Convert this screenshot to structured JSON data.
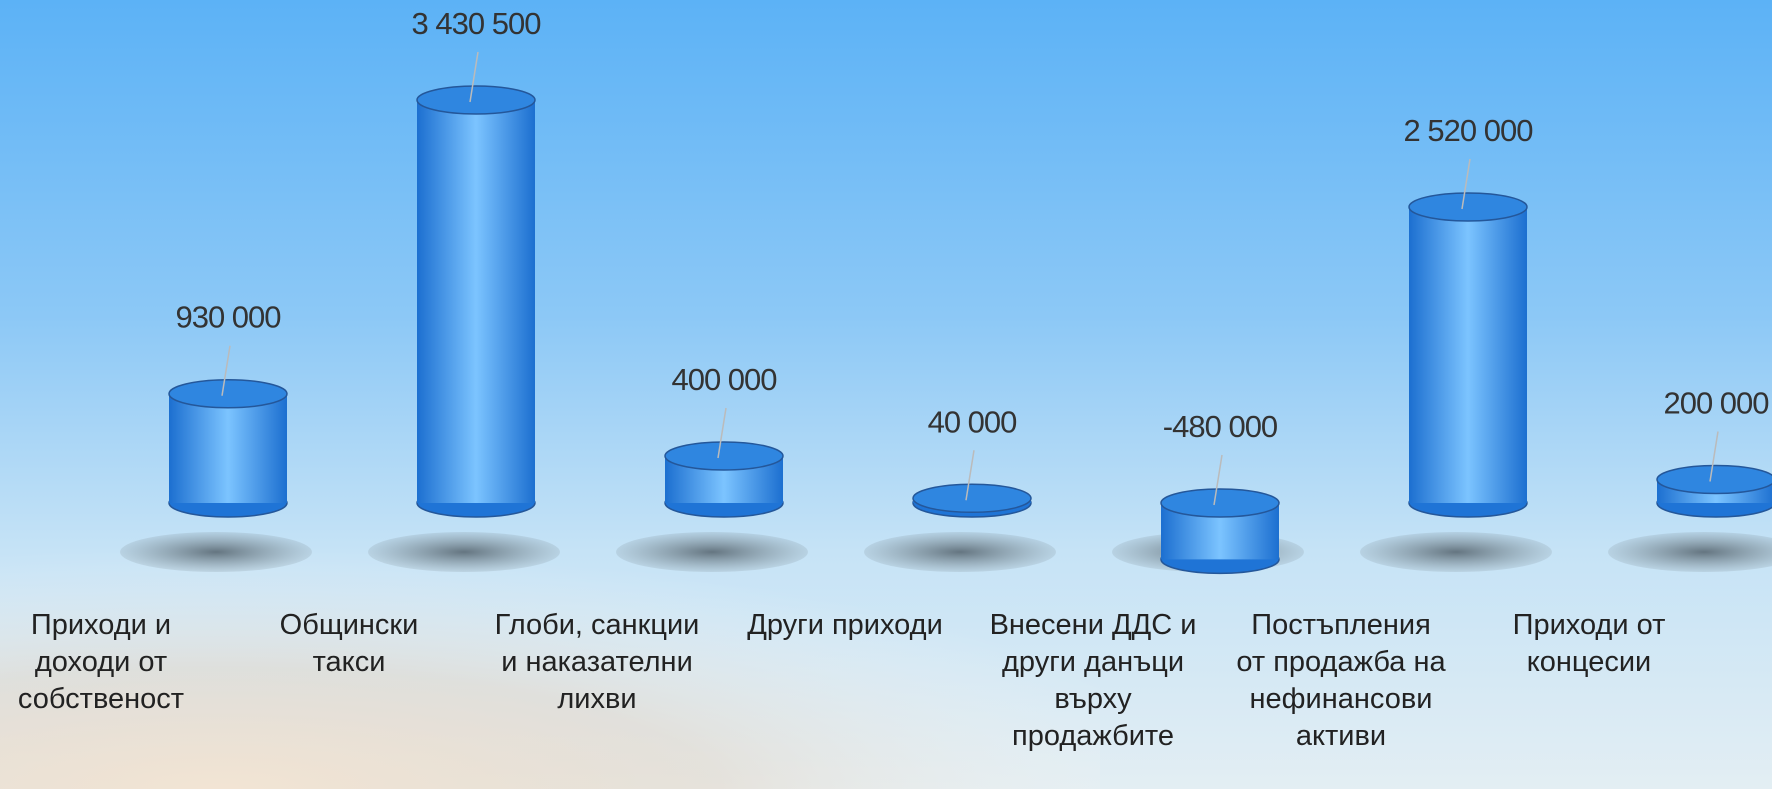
{
  "chart_data": {
    "type": "bar",
    "categories": [
      "Приходи и доходи от собственост",
      "Общински такси",
      "Глоби, санкции и наказателни лихви",
      "Други приходи",
      "Внесени ДДС и други данъци върху продажбите",
      "Постъпления от продажба на нефинансови активи",
      "Приходи от концесии"
    ],
    "values": [
      930000,
      3430500,
      400000,
      40000,
      -480000,
      2520000,
      200000
    ],
    "value_labels": [
      "930 000",
      "3 430 500",
      "400 000",
      "40 000",
      "-480 000",
      "2 520 000",
      "200 000"
    ],
    "color": "#2f86e0"
  }
}
